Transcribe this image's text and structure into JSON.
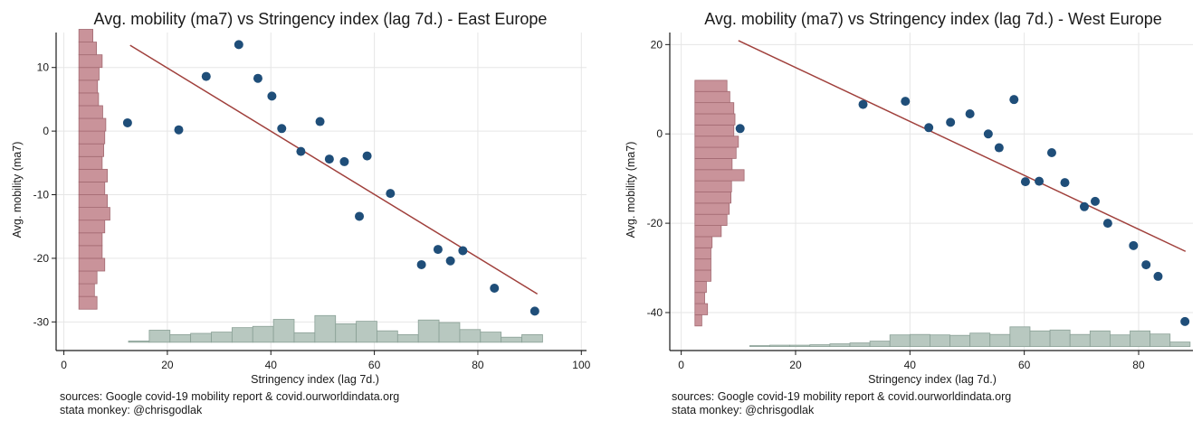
{
  "chart_data": [
    {
      "type": "scatter",
      "title": "Avg. mobility (ma7) vs Stringency index (lag 7d.) - East Europe",
      "xlabel": "Stringency index (lag 7d.)",
      "ylabel": "Avg. mobility (ma7)",
      "xlim": [
        -1.5,
        101
      ],
      "ylim": [
        -34.5,
        15.5
      ],
      "xticks": [
        0,
        20,
        40,
        60,
        80,
        100
      ],
      "yticks": [
        -30,
        -20,
        -10,
        0,
        10
      ],
      "grid": true,
      "colors": {
        "points": "#1f4e79",
        "fit": "#a0403c",
        "hist_y": "#c9939a",
        "hist_x": "#b8c8c0"
      },
      "points": [
        {
          "x": 12.3,
          "y": 1.3
        },
        {
          "x": 22.2,
          "y": 0.2
        },
        {
          "x": 27.5,
          "y": 8.6
        },
        {
          "x": 33.8,
          "y": 13.6
        },
        {
          "x": 37.5,
          "y": 8.3
        },
        {
          "x": 40.2,
          "y": 5.5
        },
        {
          "x": 42.1,
          "y": 0.4
        },
        {
          "x": 45.8,
          "y": -3.2
        },
        {
          "x": 49.5,
          "y": 1.5
        },
        {
          "x": 51.3,
          "y": -4.4
        },
        {
          "x": 54.2,
          "y": -4.8
        },
        {
          "x": 57.1,
          "y": -13.4
        },
        {
          "x": 58.6,
          "y": -3.9
        },
        {
          "x": 63.1,
          "y": -9.8
        },
        {
          "x": 69.1,
          "y": -21.0
        },
        {
          "x": 72.3,
          "y": -18.6
        },
        {
          "x": 74.7,
          "y": -20.4
        },
        {
          "x": 77.1,
          "y": -18.8
        },
        {
          "x": 83.2,
          "y": -24.7
        },
        {
          "x": 91.0,
          "y": -28.3
        }
      ],
      "fit": {
        "x": [
          12.8,
          91.5
        ],
        "y": [
          13.5,
          -25.6
        ]
      },
      "hist_y": {
        "bins": [
          {
            "from": -28,
            "to": -26,
            "value": 3.5
          },
          {
            "from": -26,
            "to": -24,
            "value": 3.0
          },
          {
            "from": -24,
            "to": -22,
            "value": 3.5
          },
          {
            "from": -22,
            "to": -20,
            "value": 5.0
          },
          {
            "from": -20,
            "to": -18,
            "value": 4.5
          },
          {
            "from": -18,
            "to": -16,
            "value": 4.5
          },
          {
            "from": -16,
            "to": -14,
            "value": 5.0
          },
          {
            "from": -14,
            "to": -12,
            "value": 6.0
          },
          {
            "from": -12,
            "to": -10,
            "value": 5.5
          },
          {
            "from": -10,
            "to": -8,
            "value": 5.0
          },
          {
            "from": -8,
            "to": -6,
            "value": 5.5
          },
          {
            "from": -6,
            "to": -4,
            "value": 4.5
          },
          {
            "from": -4,
            "to": -2,
            "value": 4.8
          },
          {
            "from": -2,
            "to": 0,
            "value": 5.0
          },
          {
            "from": 0,
            "to": 2,
            "value": 5.2
          },
          {
            "from": 2,
            "to": 4,
            "value": 4.6
          },
          {
            "from": 4,
            "to": 6,
            "value": 3.8
          },
          {
            "from": 6,
            "to": 8,
            "value": 3.6
          },
          {
            "from": 8,
            "to": 10,
            "value": 3.9
          },
          {
            "from": 10,
            "to": 12,
            "value": 4.5
          },
          {
            "from": 12,
            "to": 14,
            "value": 3.4
          },
          {
            "from": 14,
            "to": 16,
            "value": 2.7
          }
        ]
      },
      "hist_x": {
        "base": -33.2,
        "bins": [
          {
            "from": 12.5,
            "to": 16.5,
            "value": -33.0
          },
          {
            "from": 16.5,
            "to": 20.5,
            "value": -31.3
          },
          {
            "from": 20.5,
            "to": 24.5,
            "value": -32.0
          },
          {
            "from": 24.5,
            "to": 28.5,
            "value": -31.8
          },
          {
            "from": 28.5,
            "to": 32.5,
            "value": -31.6
          },
          {
            "from": 32.5,
            "to": 36.5,
            "value": -30.9
          },
          {
            "from": 36.5,
            "to": 40.5,
            "value": -30.7
          },
          {
            "from": 40.5,
            "to": 44.5,
            "value": -29.6
          },
          {
            "from": 44.5,
            "to": 48.5,
            "value": -31.7
          },
          {
            "from": 48.5,
            "to": 52.5,
            "value": -29.0
          },
          {
            "from": 52.5,
            "to": 56.5,
            "value": -30.3
          },
          {
            "from": 56.5,
            "to": 60.5,
            "value": -29.9
          },
          {
            "from": 60.5,
            "to": 64.5,
            "value": -31.4
          },
          {
            "from": 64.5,
            "to": 68.5,
            "value": -32.0
          },
          {
            "from": 68.5,
            "to": 72.5,
            "value": -29.7
          },
          {
            "from": 72.5,
            "to": 76.5,
            "value": -30.1
          },
          {
            "from": 76.5,
            "to": 80.5,
            "value": -31.2
          },
          {
            "from": 80.5,
            "to": 84.5,
            "value": -31.6
          },
          {
            "from": 84.5,
            "to": 88.5,
            "value": -32.4
          },
          {
            "from": 88.5,
            "to": 92.5,
            "value": -32.0
          }
        ]
      }
    },
    {
      "type": "scatter",
      "title": "Avg. mobility (ma7) vs Stringency index (lag 7d.) - West Europe",
      "xlabel": "Stringency index (lag 7d.)",
      "ylabel": "Avg. mobility (ma7)",
      "xlim": [
        -2,
        89.5
      ],
      "ylim": [
        -48.5,
        22.7
      ],
      "xticks": [
        0,
        20,
        40,
        60,
        80
      ],
      "yticks": [
        -40,
        -20,
        0,
        20
      ],
      "grid": true,
      "colors": {
        "points": "#1f4e79",
        "fit": "#a0403c",
        "hist_y": "#c9939a",
        "hist_x": "#b8c8c0"
      },
      "points": [
        {
          "x": 10.3,
          "y": 1.2
        },
        {
          "x": 31.8,
          "y": 6.6
        },
        {
          "x": 39.2,
          "y": 7.3
        },
        {
          "x": 43.3,
          "y": 1.4
        },
        {
          "x": 47.1,
          "y": 2.6
        },
        {
          "x": 50.5,
          "y": 4.5
        },
        {
          "x": 53.7,
          "y": 0.0
        },
        {
          "x": 55.6,
          "y": -3.1
        },
        {
          "x": 58.2,
          "y": 7.7
        },
        {
          "x": 60.2,
          "y": -10.7
        },
        {
          "x": 62.6,
          "y": -10.6
        },
        {
          "x": 64.8,
          "y": -4.2
        },
        {
          "x": 67.1,
          "y": -10.9
        },
        {
          "x": 70.5,
          "y": -16.3
        },
        {
          "x": 72.4,
          "y": -15.1
        },
        {
          "x": 74.6,
          "y": -20.0
        },
        {
          "x": 79.1,
          "y": -25.0
        },
        {
          "x": 81.3,
          "y": -29.3
        },
        {
          "x": 83.4,
          "y": -31.9
        },
        {
          "x": 88.1,
          "y": -42.0
        }
      ],
      "fit": {
        "x": [
          10.0,
          88.2
        ],
        "y": [
          20.9,
          -26.3
        ]
      },
      "hist_y": {
        "bins": [
          {
            "from": -43,
            "to": -40.5,
            "value": 1.2
          },
          {
            "from": -40.5,
            "to": -38,
            "value": 2.2
          },
          {
            "from": -38,
            "to": -35.5,
            "value": 1.7
          },
          {
            "from": -35.5,
            "to": -33,
            "value": 2.0
          },
          {
            "from": -33,
            "to": -30.5,
            "value": 2.8
          },
          {
            "from": -30.5,
            "to": -28,
            "value": 2.8
          },
          {
            "from": -28,
            "to": -25.5,
            "value": 2.8
          },
          {
            "from": -25.5,
            "to": -23,
            "value": 3.0
          },
          {
            "from": -23,
            "to": -20.5,
            "value": 4.6
          },
          {
            "from": -20.5,
            "to": -18,
            "value": 5.6
          },
          {
            "from": -18,
            "to": -15.5,
            "value": 6.0
          },
          {
            "from": -15.5,
            "to": -13,
            "value": 6.3
          },
          {
            "from": -13,
            "to": -10.5,
            "value": 6.4
          },
          {
            "from": -10.5,
            "to": -8,
            "value": 8.6
          },
          {
            "from": -8,
            "to": -5.5,
            "value": 6.5
          },
          {
            "from": -5.5,
            "to": -3,
            "value": 7.2
          },
          {
            "from": -3,
            "to": -0.5,
            "value": 7.6
          },
          {
            "from": -0.5,
            "to": 2,
            "value": 6.8
          },
          {
            "from": 2,
            "to": 4.5,
            "value": 7.0
          },
          {
            "from": 4.5,
            "to": 7,
            "value": 6.8
          },
          {
            "from": 7,
            "to": 9.5,
            "value": 6.1
          },
          {
            "from": 9.5,
            "to": 12,
            "value": 5.6
          }
        ]
      },
      "hist_x": {
        "base": -47.6,
        "bins": [
          {
            "from": 12,
            "to": 15.5,
            "value": -47.4
          },
          {
            "from": 15.5,
            "to": 19,
            "value": -47.3
          },
          {
            "from": 19,
            "to": 22.5,
            "value": -47.3
          },
          {
            "from": 22.5,
            "to": 26,
            "value": -47.2
          },
          {
            "from": 26,
            "to": 29.5,
            "value": -47.0
          },
          {
            "from": 29.5,
            "to": 33,
            "value": -46.8
          },
          {
            "from": 33,
            "to": 36.5,
            "value": -46.4
          },
          {
            "from": 36.5,
            "to": 40,
            "value": -45.0
          },
          {
            "from": 40,
            "to": 43.5,
            "value": -44.9
          },
          {
            "from": 43.5,
            "to": 47,
            "value": -45.0
          },
          {
            "from": 47,
            "to": 50.5,
            "value": -45.1
          },
          {
            "from": 50.5,
            "to": 54,
            "value": -44.6
          },
          {
            "from": 54,
            "to": 57.5,
            "value": -44.9
          },
          {
            "from": 57.5,
            "to": 61,
            "value": -43.2
          },
          {
            "from": 61,
            "to": 64.5,
            "value": -44.1
          },
          {
            "from": 64.5,
            "to": 68,
            "value": -43.9
          },
          {
            "from": 68,
            "to": 71.5,
            "value": -44.9
          },
          {
            "from": 71.5,
            "to": 75,
            "value": -44.1
          },
          {
            "from": 75,
            "to": 78.5,
            "value": -45.0
          },
          {
            "from": 78.5,
            "to": 82,
            "value": -44.1
          },
          {
            "from": 82,
            "to": 85.5,
            "value": -44.8
          },
          {
            "from": 85.5,
            "to": 89,
            "value": -46.6
          }
        ]
      }
    }
  ],
  "footer": {
    "line1": "sources: Google covid-19 mobility report & covid.ourworldindata.org",
    "line2": "stata monkey: @chrisgodlak"
  }
}
